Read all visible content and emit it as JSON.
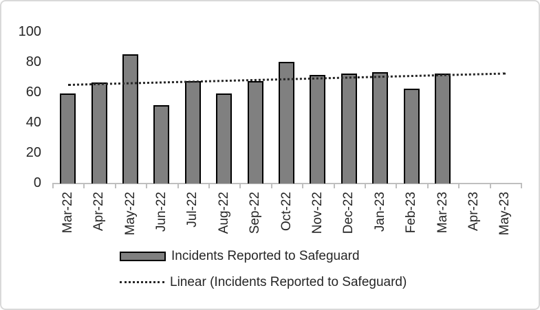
{
  "chart_data": {
    "type": "bar",
    "title": "",
    "xlabel": "",
    "ylabel": "",
    "categories": [
      "Mar-22",
      "Apr-22",
      "May-22",
      "Jun-22",
      "Jul-22",
      "Aug-22",
      "Sep-22",
      "Oct-22",
      "Nov-22",
      "Dec-22",
      "Jan-23",
      "Feb-23",
      "Mar-23",
      "Apr-23",
      "May-23"
    ],
    "series": [
      {
        "name": "Incidents Reported to Safeguard",
        "values": [
          59,
          66,
          85,
          51,
          67,
          59,
          67,
          80,
          71,
          72,
          73,
          62,
          72,
          null,
          null
        ]
      }
    ],
    "trendline": {
      "name": "Linear (Incidents Reported to Safeguard)",
      "start_value": 65.4,
      "end_value": 72.9
    },
    "ylim": [
      0,
      100
    ],
    "yticks": [
      0,
      20,
      40,
      60,
      80,
      100
    ],
    "grid": false,
    "legend_position": "bottom",
    "colors": {
      "bar_fill": "#808080",
      "bar_border": "#000000",
      "trendline": "#262626",
      "axis": "#bfbfbf",
      "text": "#262626",
      "frame_border": "#d9d9d9"
    }
  },
  "legend": {
    "bar_label": "Incidents Reported to Safeguard",
    "trendline_label": "Linear (Incidents Reported to Safeguard)"
  }
}
